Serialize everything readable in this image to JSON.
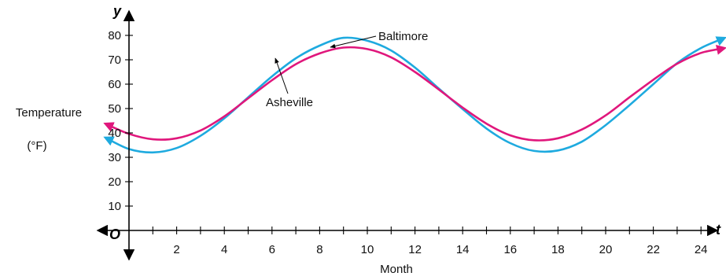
{
  "chart_data": {
    "type": "line",
    "title": "",
    "xlabel": "Month",
    "ylabel": "Temperature",
    "ylabel_unit": "(°F)",
    "x_var": "t",
    "y_var": "y",
    "origin_label": "O",
    "xlim": [
      0,
      25
    ],
    "ylim": [
      0,
      80
    ],
    "x_ticks": [
      2,
      4,
      6,
      8,
      10,
      12,
      14,
      16,
      18,
      20,
      22,
      24
    ],
    "x_tick_labels": [
      "2",
      "4",
      "6",
      "8",
      "10",
      "12",
      "14",
      "16",
      "18",
      "20",
      "22",
      "24"
    ],
    "y_ticks": [
      10,
      20,
      30,
      40,
      50,
      60,
      70,
      80
    ],
    "y_tick_labels": [
      "10",
      "20",
      "30",
      "40",
      "50",
      "60",
      "70",
      "80"
    ],
    "grid": false,
    "series": [
      {
        "name": "Baltimore",
        "color": "#1eaadf",
        "x": [
          -1,
          0,
          1,
          2,
          3,
          4,
          5,
          6,
          7,
          8,
          9,
          10,
          11,
          12,
          13,
          14,
          15,
          16,
          17,
          18,
          19,
          20,
          21,
          22,
          23,
          24,
          25
        ],
        "values": [
          38.1,
          33.4,
          32.0,
          33.8,
          38.8,
          46.0,
          54.6,
          63.2,
          70.6,
          75.8,
          79.0,
          77.8,
          73.8,
          66.8,
          58.2,
          49.8,
          41.8,
          35.8,
          32.6,
          32.8,
          36.4,
          43.2,
          51.4,
          60.0,
          68.6,
          74.8,
          79.0
        ]
      },
      {
        "name": "Asheville",
        "color": "#e0177c",
        "x": [
          -1,
          0,
          1,
          2,
          3,
          4,
          5,
          6,
          7,
          8,
          9,
          10,
          11,
          12,
          13,
          14,
          15,
          16,
          17,
          18,
          19,
          20,
          21,
          22,
          23,
          24,
          25
        ],
        "values": [
          43.8,
          39.6,
          37.4,
          37.8,
          41.0,
          46.8,
          54.2,
          61.6,
          68.2,
          72.6,
          75.0,
          74.4,
          71.0,
          65.0,
          57.8,
          50.4,
          43.8,
          39.0,
          37.0,
          37.8,
          41.4,
          47.2,
          54.6,
          61.8,
          68.4,
          72.8,
          74.8
        ]
      }
    ],
    "annotations": [
      {
        "text": "Baltimore",
        "series": "Baltimore"
      },
      {
        "text": "Asheville",
        "series": "Asheville"
      }
    ]
  }
}
